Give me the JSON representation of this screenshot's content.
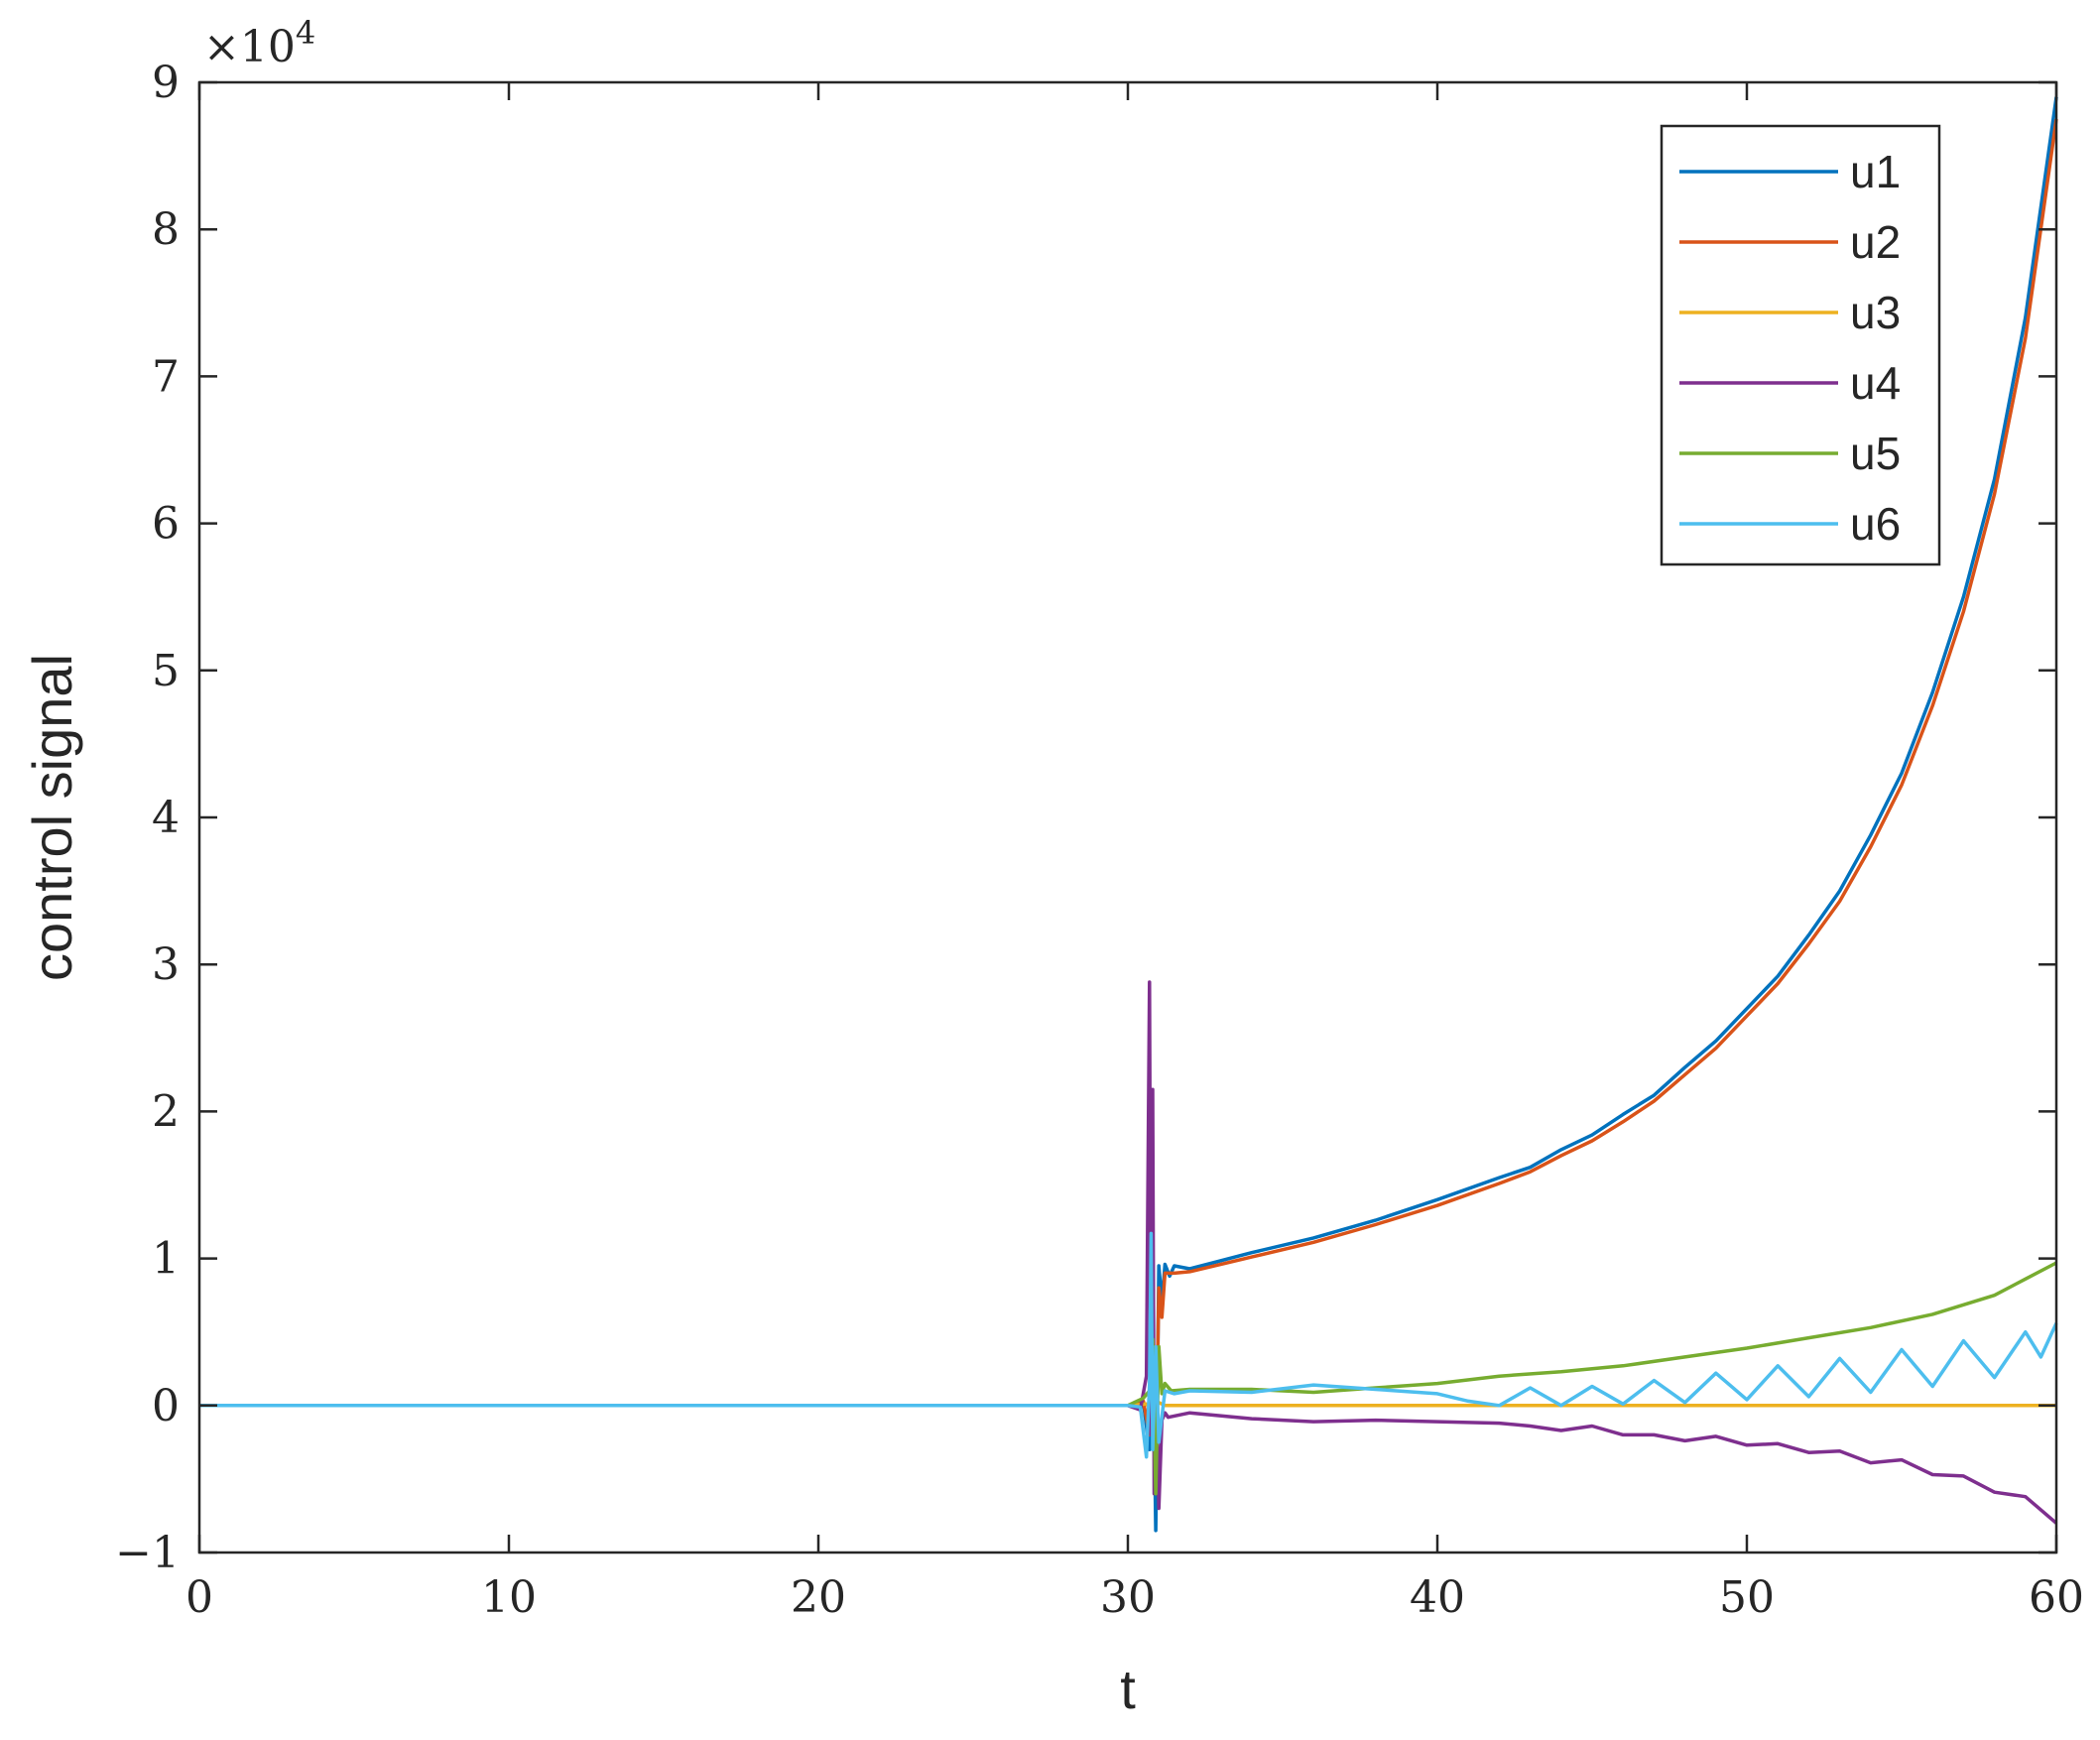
{
  "chart_data": {
    "type": "line",
    "xlabel": "t",
    "ylabel": "control signal",
    "xlim": [
      0,
      60
    ],
    "ylim": [
      -10000,
      90000
    ],
    "x_ticks": [
      0,
      10,
      20,
      30,
      40,
      50,
      60
    ],
    "y_ticks": [
      -10000,
      0,
      10000,
      20000,
      30000,
      40000,
      50000,
      60000,
      70000,
      80000,
      90000
    ],
    "y_tick_labels": [
      "−1",
      "0",
      "1",
      "2",
      "3",
      "4",
      "5",
      "6",
      "7",
      "8",
      "9"
    ],
    "y_exponent": {
      "base": "×10",
      "power": "4"
    },
    "grid": false,
    "legend_position": "top-right",
    "series": [
      {
        "name": "u1",
        "color": "#0072BD",
        "points": [
          [
            0,
            0
          ],
          [
            30,
            0
          ],
          [
            30.5,
            200
          ],
          [
            30.7,
            -3000
          ],
          [
            30.8,
            6000
          ],
          [
            30.9,
            -8500
          ],
          [
            31.0,
            9500
          ],
          [
            31.1,
            7000
          ],
          [
            31.2,
            9600
          ],
          [
            31.35,
            8800
          ],
          [
            31.5,
            9500
          ],
          [
            32,
            9300
          ],
          [
            34,
            10400
          ],
          [
            36,
            11400
          ],
          [
            38,
            12600
          ],
          [
            40,
            14000
          ],
          [
            42,
            15500
          ],
          [
            43,
            16200
          ],
          [
            44,
            17400
          ],
          [
            45,
            18400
          ],
          [
            46,
            19800
          ],
          [
            47,
            21100
          ],
          [
            48,
            23000
          ],
          [
            49,
            24800
          ],
          [
            50,
            27000
          ],
          [
            51,
            29200
          ],
          [
            52,
            32000
          ],
          [
            53,
            35000
          ],
          [
            54,
            38800
          ],
          [
            55,
            43000
          ],
          [
            56,
            48500
          ],
          [
            57,
            55000
          ],
          [
            58,
            63000
          ],
          [
            59,
            74000
          ],
          [
            60,
            89000
          ]
        ]
      },
      {
        "name": "u2",
        "color": "#D95319",
        "points": [
          [
            0,
            0
          ],
          [
            30,
            0
          ],
          [
            30.5,
            300
          ],
          [
            30.7,
            -2000
          ],
          [
            30.8,
            5500
          ],
          [
            30.9,
            -5000
          ],
          [
            31.0,
            8000
          ],
          [
            31.1,
            6000
          ],
          [
            31.2,
            9000
          ],
          [
            31.5,
            9000
          ],
          [
            32,
            9100
          ],
          [
            34,
            10100
          ],
          [
            36,
            11100
          ],
          [
            38,
            12300
          ],
          [
            40,
            13600
          ],
          [
            42,
            15100
          ],
          [
            43,
            15900
          ],
          [
            44,
            17000
          ],
          [
            45,
            18000
          ],
          [
            46,
            19300
          ],
          [
            47,
            20700
          ],
          [
            48,
            22500
          ],
          [
            49,
            24300
          ],
          [
            50,
            26500
          ],
          [
            51,
            28700
          ],
          [
            52,
            31400
          ],
          [
            53,
            34300
          ],
          [
            54,
            38000
          ],
          [
            55,
            42200
          ],
          [
            56,
            47600
          ],
          [
            57,
            54000
          ],
          [
            58,
            62000
          ],
          [
            59,
            72600
          ],
          [
            60,
            87500
          ]
        ]
      },
      {
        "name": "u3",
        "color": "#EDB120",
        "points": [
          [
            0,
            0
          ],
          [
            30,
            0
          ],
          [
            30.6,
            100
          ],
          [
            30.8,
            -300
          ],
          [
            31.0,
            200
          ],
          [
            31.2,
            0
          ],
          [
            60,
            0
          ]
        ]
      },
      {
        "name": "u4",
        "color": "#7E2F8E",
        "points": [
          [
            0,
            0
          ],
          [
            30,
            0
          ],
          [
            30.4,
            -300
          ],
          [
            30.6,
            2000
          ],
          [
            30.7,
            28800
          ],
          [
            30.75,
            -2000
          ],
          [
            30.8,
            21500
          ],
          [
            30.85,
            -6000
          ],
          [
            30.9,
            2500
          ],
          [
            31.0,
            -7000
          ],
          [
            31.1,
            -1000
          ],
          [
            31.2,
            -500
          ],
          [
            31.3,
            -800
          ],
          [
            32,
            -500
          ],
          [
            34,
            -900
          ],
          [
            36,
            -1100
          ],
          [
            38,
            -1000
          ],
          [
            40,
            -1100
          ],
          [
            42,
            -1200
          ],
          [
            43,
            -1400
          ],
          [
            44,
            -1700
          ],
          [
            45,
            -1400
          ],
          [
            46,
            -2000
          ],
          [
            47,
            -2000
          ],
          [
            48,
            -2400
          ],
          [
            49,
            -2100
          ],
          [
            50,
            -2700
          ],
          [
            51,
            -2600
          ],
          [
            52,
            -3200
          ],
          [
            53,
            -3100
          ],
          [
            54,
            -3900
          ],
          [
            55,
            -3700
          ],
          [
            56,
            -4700
          ],
          [
            57,
            -4800
          ],
          [
            58,
            -5900
          ],
          [
            59,
            -6200
          ],
          [
            60,
            -8000
          ]
        ]
      },
      {
        "name": "u5",
        "color": "#77AC30",
        "points": [
          [
            0,
            0
          ],
          [
            30,
            0
          ],
          [
            30.5,
            500
          ],
          [
            30.7,
            1000
          ],
          [
            30.8,
            4500
          ],
          [
            30.9,
            -6000
          ],
          [
            31.0,
            4000
          ],
          [
            31.1,
            800
          ],
          [
            31.2,
            1500
          ],
          [
            31.4,
            1000
          ],
          [
            32,
            1100
          ],
          [
            34,
            1100
          ],
          [
            36,
            900
          ],
          [
            38,
            1200
          ],
          [
            40,
            1500
          ],
          [
            42,
            2000
          ],
          [
            44,
            2300
          ],
          [
            46,
            2700
          ],
          [
            48,
            3300
          ],
          [
            50,
            3900
          ],
          [
            52,
            4600
          ],
          [
            54,
            5300
          ],
          [
            56,
            6200
          ],
          [
            58,
            7500
          ],
          [
            59,
            8600
          ],
          [
            60,
            9700
          ]
        ]
      },
      {
        "name": "u6",
        "color": "#4DBEEE",
        "points": [
          [
            0,
            0
          ],
          [
            30,
            0
          ],
          [
            30.4,
            -100
          ],
          [
            30.6,
            -3500
          ],
          [
            30.7,
            1500
          ],
          [
            30.75,
            11700
          ],
          [
            30.8,
            -3000
          ],
          [
            30.9,
            4000
          ],
          [
            31.0,
            -2500
          ],
          [
            31.2,
            1000
          ],
          [
            31.5,
            800
          ],
          [
            32,
            1000
          ],
          [
            34,
            900
          ],
          [
            36,
            1400
          ],
          [
            38,
            1100
          ],
          [
            40,
            800
          ],
          [
            41,
            300
          ],
          [
            42,
            0
          ],
          [
            43,
            1200
          ],
          [
            44,
            0
          ],
          [
            45,
            1300
          ],
          [
            46,
            100
          ],
          [
            47,
            1700
          ],
          [
            48,
            200
          ],
          [
            49,
            2200
          ],
          [
            50,
            400
          ],
          [
            51,
            2700
          ],
          [
            52,
            600
          ],
          [
            53,
            3200
          ],
          [
            54,
            900
          ],
          [
            55,
            3800
          ],
          [
            56,
            1300
          ],
          [
            57,
            4400
          ],
          [
            58,
            1900
          ],
          [
            59,
            5000
          ],
          [
            59.5,
            3300
          ],
          [
            60,
            5600
          ]
        ]
      }
    ]
  }
}
